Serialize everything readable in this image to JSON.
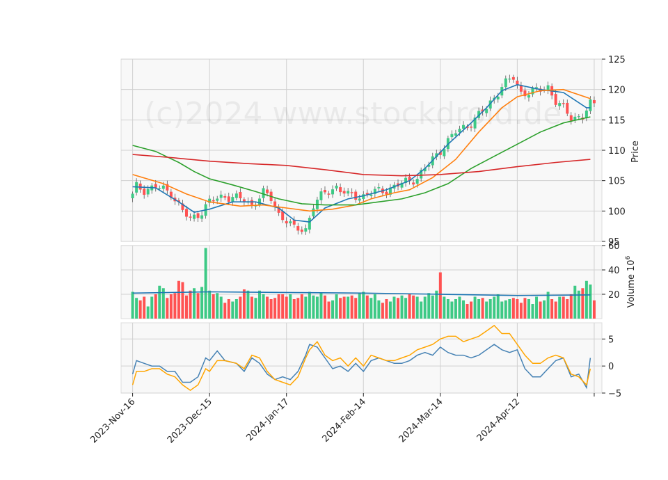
{
  "watermark": "(c)2024 www.stockdroid.de",
  "colors": {
    "up": "#3dc985",
    "down": "#ff5252",
    "ma_blue": "#1f77b4",
    "ma_orange": "#ff7f0e",
    "ma_green": "#2ca02c",
    "ma_red": "#d62728",
    "osc_blue": "#4682b4",
    "osc_orange": "#ffa500",
    "panel_bg": "#f8f8f8",
    "grid": "#d0d0d0"
  },
  "chart_data": [
    {
      "type": "candlestick",
      "ylabel": "Price",
      "ylim": [
        95,
        125
      ],
      "yticks": [
        95,
        100,
        105,
        110,
        115,
        120,
        125
      ],
      "x_range": [
        -3,
        122
      ],
      "xtick_positions": [
        0,
        20,
        40,
        60,
        80,
        100,
        120
      ],
      "xtick_labels": [
        "2023-Nov-16",
        "2023-Dec-15",
        "2024-Jan-17",
        "2024-Feb-14",
        "2024-Mar-14",
        "2024-Apr-12",
        ""
      ],
      "grid": true,
      "close_anchors": [
        [
          0,
          102.5
        ],
        [
          1,
          104
        ],
        [
          3,
          103.5
        ],
        [
          6,
          104
        ],
        [
          10,
          103
        ],
        [
          13,
          100
        ],
        [
          15,
          98.5
        ],
        [
          18,
          100
        ],
        [
          20,
          101.5
        ],
        [
          24,
          102.5
        ],
        [
          28,
          102
        ],
        [
          31,
          101
        ],
        [
          34,
          103
        ],
        [
          36,
          102
        ],
        [
          38,
          99.5
        ],
        [
          40,
          98.5
        ],
        [
          42,
          97
        ],
        [
          45,
          97
        ],
        [
          47,
          101
        ],
        [
          50,
          103
        ],
        [
          53,
          104
        ],
        [
          56,
          102.5
        ],
        [
          60,
          102.5
        ],
        [
          62,
          103
        ],
        [
          66,
          103.5
        ],
        [
          70,
          104.5
        ],
        [
          74,
          105.5
        ],
        [
          76,
          107
        ],
        [
          80,
          110
        ],
        [
          84,
          113
        ],
        [
          88,
          114.5
        ],
        [
          92,
          117
        ],
        [
          96,
          120.5
        ],
        [
          99,
          122
        ],
        [
          101,
          119.5
        ],
        [
          104,
          119.5
        ],
        [
          108,
          120.5
        ],
        [
          110,
          118
        ],
        [
          114,
          115.5
        ],
        [
          117,
          115.5
        ],
        [
          119,
          117.5
        ]
      ],
      "moving_averages": [
        {
          "color": "ma_blue",
          "points": [
            [
              0,
              104
            ],
            [
              6,
              103.8
            ],
            [
              12,
              101.5
            ],
            [
              16,
              99.8
            ],
            [
              20,
              100.3
            ],
            [
              26,
              101.5
            ],
            [
              32,
              101.5
            ],
            [
              38,
              100.5
            ],
            [
              42,
              98.5
            ],
            [
              46,
              98.2
            ],
            [
              50,
              100.5
            ],
            [
              56,
              102
            ],
            [
              60,
              102.5
            ],
            [
              66,
              103.5
            ],
            [
              72,
              105
            ],
            [
              76,
              107
            ],
            [
              82,
              111
            ],
            [
              88,
              114.5
            ],
            [
              92,
              117
            ],
            [
              96,
              119.8
            ],
            [
              100,
              120.8
            ],
            [
              106,
              120
            ],
            [
              112,
              119.5
            ],
            [
              118,
              117
            ],
            [
              119,
              117
            ]
          ]
        },
        {
          "color": "ma_orange",
          "points": [
            [
              0,
              106
            ],
            [
              8,
              104.5
            ],
            [
              14,
              102.8
            ],
            [
              20,
              101.5
            ],
            [
              28,
              100.8
            ],
            [
              34,
              101
            ],
            [
              40,
              100.5
            ],
            [
              46,
              100
            ],
            [
              52,
              100.3
            ],
            [
              58,
              101
            ],
            [
              62,
              102
            ],
            [
              68,
              103
            ],
            [
              72,
              103.5
            ],
            [
              78,
              105.5
            ],
            [
              84,
              108.5
            ],
            [
              90,
              113
            ],
            [
              96,
              117
            ],
            [
              100,
              118.8
            ],
            [
              106,
              119.8
            ],
            [
              112,
              120
            ],
            [
              119,
              118.5
            ]
          ]
        },
        {
          "color": "ma_green",
          "points": [
            [
              0,
              110.8
            ],
            [
              6,
              109.8
            ],
            [
              12,
              108
            ],
            [
              16,
              106.5
            ],
            [
              20,
              105.3
            ],
            [
              26,
              104.3
            ],
            [
              32,
              103.2
            ],
            [
              38,
              102
            ],
            [
              44,
              101.2
            ],
            [
              50,
              101
            ],
            [
              58,
              101
            ],
            [
              64,
              101.5
            ],
            [
              70,
              102
            ],
            [
              76,
              103
            ],
            [
              82,
              104.5
            ],
            [
              88,
              107
            ],
            [
              94,
              109
            ],
            [
              100,
              111
            ],
            [
              106,
              113
            ],
            [
              112,
              114.5
            ],
            [
              119,
              115.5
            ]
          ]
        },
        {
          "color": "ma_red",
          "points": [
            [
              0,
              109.3
            ],
            [
              10,
              108.8
            ],
            [
              20,
              108.2
            ],
            [
              30,
              107.8
            ],
            [
              40,
              107.5
            ],
            [
              50,
              106.8
            ],
            [
              60,
              106
            ],
            [
              70,
              105.8
            ],
            [
              80,
              106
            ],
            [
              90,
              106.5
            ],
            [
              100,
              107.3
            ],
            [
              110,
              108
            ],
            [
              119,
              108.5
            ]
          ]
        }
      ]
    },
    {
      "type": "bar",
      "ylabel": "Volume",
      "ylabel_exponent": "6",
      "ylim": [
        0,
        60
      ],
      "yticks": [
        20,
        40,
        60
      ],
      "volume_pattern": [
        22,
        17,
        15,
        18,
        10,
        18,
        20,
        27,
        25,
        17,
        20,
        21,
        31,
        30,
        19,
        23,
        25,
        21,
        26,
        58,
        23,
        20,
        21,
        18,
        13,
        16,
        14,
        16,
        18,
        24,
        23,
        18,
        17,
        23,
        20,
        18,
        16,
        17,
        20,
        20,
        18,
        20,
        16,
        17,
        20,
        18,
        22,
        19,
        18,
        21,
        19,
        14,
        15,
        20,
        17,
        18,
        18,
        19,
        17,
        21,
        22,
        19,
        17,
        20,
        15,
        13,
        16,
        14,
        18,
        17,
        19,
        17,
        20,
        19,
        18,
        14,
        18,
        21,
        19,
        23,
        38,
        18,
        16,
        14,
        16,
        18,
        15,
        12,
        14,
        18,
        16,
        17,
        14,
        16,
        18,
        20,
        14,
        15,
        16,
        17,
        16,
        13,
        17,
        16,
        12,
        18,
        14,
        15,
        22,
        16,
        14,
        18,
        18,
        16,
        20,
        27,
        23,
        25,
        31,
        28,
        15
      ],
      "ma_points": [
        [
          0,
          21
        ],
        [
          20,
          22
        ],
        [
          40,
          21.5
        ],
        [
          60,
          21
        ],
        [
          80,
          20
        ],
        [
          100,
          19
        ],
        [
          119,
          19.5
        ]
      ]
    },
    {
      "type": "line",
      "ylim": [
        -5,
        8
      ],
      "yticks": [
        -5,
        0,
        5
      ],
      "series": [
        {
          "color": "osc_blue",
          "points": [
            [
              0,
              -1.5
            ],
            [
              1,
              1
            ],
            [
              3,
              0.5
            ],
            [
              5,
              0
            ],
            [
              7,
              0
            ],
            [
              9,
              -1
            ],
            [
              11,
              -1
            ],
            [
              13,
              -3
            ],
            [
              15,
              -3
            ],
            [
              17,
              -2
            ],
            [
              19,
              1.5
            ],
            [
              20,
              1
            ],
            [
              22,
              2.8
            ],
            [
              24,
              1
            ],
            [
              27,
              0.5
            ],
            [
              29,
              -1
            ],
            [
              31,
              1.5
            ],
            [
              33,
              0.5
            ],
            [
              35,
              -1.5
            ],
            [
              37,
              -2.5
            ],
            [
              39,
              -2
            ],
            [
              41,
              -2.5
            ],
            [
              43,
              -1
            ],
            [
              45,
              2
            ],
            [
              46,
              4
            ],
            [
              48,
              3.5
            ],
            [
              50,
              1.5
            ],
            [
              52,
              -0.5
            ],
            [
              54,
              0
            ],
            [
              56,
              -1
            ],
            [
              58,
              0.5
            ],
            [
              60,
              -1
            ],
            [
              62,
              1
            ],
            [
              64,
              1.5
            ],
            [
              66,
              1
            ],
            [
              68,
              0.5
            ],
            [
              70,
              0.5
            ],
            [
              72,
              1
            ],
            [
              74,
              2
            ],
            [
              76,
              2.5
            ],
            [
              78,
              2
            ],
            [
              80,
              3.5
            ],
            [
              82,
              2.5
            ],
            [
              84,
              2
            ],
            [
              86,
              2
            ],
            [
              88,
              1.5
            ],
            [
              90,
              2
            ],
            [
              92,
              3
            ],
            [
              94,
              4
            ],
            [
              96,
              3
            ],
            [
              98,
              2.5
            ],
            [
              100,
              3
            ],
            [
              102,
              -0.5
            ],
            [
              104,
              -2
            ],
            [
              106,
              -2
            ],
            [
              108,
              -0.5
            ],
            [
              110,
              1
            ],
            [
              112,
              1.5
            ],
            [
              114,
              -2
            ],
            [
              116,
              -1.5
            ],
            [
              118,
              -4
            ],
            [
              119,
              1.5
            ]
          ]
        },
        {
          "color": "osc_orange",
          "points": [
            [
              0,
              -3.5
            ],
            [
              1,
              -1
            ],
            [
              3,
              -1
            ],
            [
              5,
              -0.5
            ],
            [
              7,
              -0.5
            ],
            [
              9,
              -1.5
            ],
            [
              11,
              -2
            ],
            [
              13,
              -3.5
            ],
            [
              15,
              -4.5
            ],
            [
              17,
              -3.5
            ],
            [
              19,
              -0.5
            ],
            [
              20,
              -1
            ],
            [
              22,
              1
            ],
            [
              24,
              1
            ],
            [
              27,
              0.5
            ],
            [
              29,
              -0.5
            ],
            [
              31,
              2
            ],
            [
              33,
              1.5
            ],
            [
              35,
              -1
            ],
            [
              37,
              -2.5
            ],
            [
              39,
              -3
            ],
            [
              41,
              -3.5
            ],
            [
              43,
              -2
            ],
            [
              45,
              1.5
            ],
            [
              46,
              3
            ],
            [
              48,
              4.5
            ],
            [
              50,
              2
            ],
            [
              52,
              1
            ],
            [
              54,
              1.5
            ],
            [
              56,
              0
            ],
            [
              58,
              1.5
            ],
            [
              60,
              0
            ],
            [
              62,
              2
            ],
            [
              64,
              1.5
            ],
            [
              66,
              1
            ],
            [
              68,
              1
            ],
            [
              70,
              1.5
            ],
            [
              72,
              2
            ],
            [
              74,
              3
            ],
            [
              76,
              3.5
            ],
            [
              78,
              4
            ],
            [
              80,
              5
            ],
            [
              82,
              5.5
            ],
            [
              84,
              5.5
            ],
            [
              86,
              4.5
            ],
            [
              88,
              5
            ],
            [
              90,
              5.5
            ],
            [
              92,
              6.5
            ],
            [
              94,
              7.5
            ],
            [
              96,
              6
            ],
            [
              98,
              6
            ],
            [
              100,
              4
            ],
            [
              102,
              2
            ],
            [
              104,
              0.5
            ],
            [
              106,
              0.5
            ],
            [
              108,
              1.5
            ],
            [
              110,
              2
            ],
            [
              112,
              1.5
            ],
            [
              114,
              -1.5
            ],
            [
              116,
              -2
            ],
            [
              118,
              -3.5
            ],
            [
              119,
              -0.5
            ]
          ]
        }
      ]
    }
  ]
}
